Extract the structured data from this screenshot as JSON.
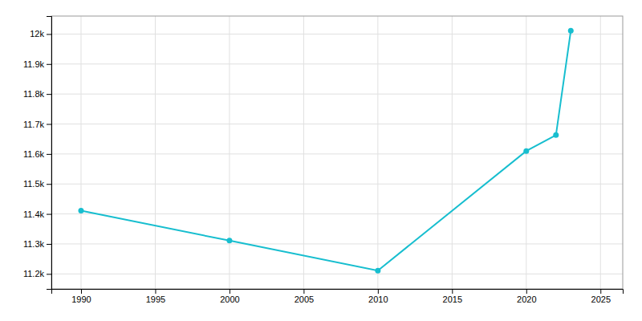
{
  "chart_data": {
    "type": "line",
    "x": [
      1990,
      2000,
      2010,
      2020,
      2022,
      2023
    ],
    "values": [
      11411,
      11311,
      11211,
      11610,
      11663,
      12011
    ],
    "color": "#17becf",
    "marker": "circle",
    "xlim": [
      1988,
      2026.5
    ],
    "xticks": [
      1990,
      1995,
      2000,
      2005,
      2010,
      2015,
      2020,
      2025
    ],
    "ylim": [
      11150,
      12060
    ],
    "yticks": [
      {
        "value": 11200,
        "label": "11.2k"
      },
      {
        "value": 11300,
        "label": "11.3k"
      },
      {
        "value": 11400,
        "label": "11.4k"
      },
      {
        "value": 11500,
        "label": "11.5k"
      },
      {
        "value": 11600,
        "label": "11.6k"
      },
      {
        "value": 11700,
        "label": "11.7k"
      },
      {
        "value": 11800,
        "label": "11.8k"
      },
      {
        "value": 11900,
        "label": "11.9k"
      },
      {
        "value": 12000,
        "label": "12k"
      }
    ],
    "grid": true
  }
}
